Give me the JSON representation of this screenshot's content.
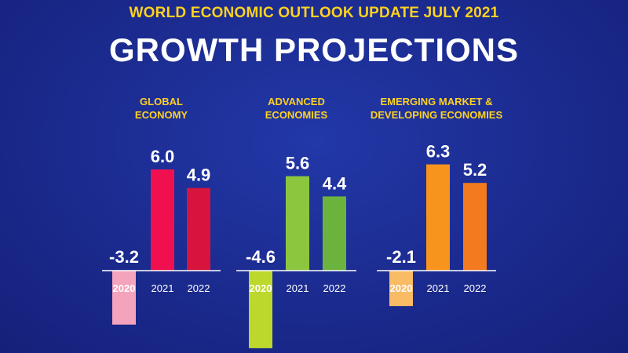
{
  "chart_data": {
    "type": "bar",
    "subtitle": "WORLD ECONOMIC OUTLOOK UPDATE JULY 2021",
    "title": "GROWTH PROJECTIONS",
    "categories": [
      "2020",
      "2021",
      "2022"
    ],
    "series": [
      {
        "name": [
          "GLOBAL",
          "ECONOMY"
        ],
        "values": [
          -3.2,
          6.0,
          4.9
        ],
        "labels": [
          "-3.2",
          "6.0",
          "4.9"
        ],
        "colors": [
          "#f4a3bd",
          "#f0104f",
          "#d7143d"
        ]
      },
      {
        "name": [
          "ADVANCED",
          "ECONOMIES"
        ],
        "values": [
          -4.6,
          5.6,
          4.4
        ],
        "labels": [
          "-4.6",
          "5.6",
          "4.4"
        ],
        "colors": [
          "#bcd82c",
          "#8cc63f",
          "#6cb33e"
        ]
      },
      {
        "name": [
          "EMERGING MARKET &",
          "DEVELOPING ECONOMIES"
        ],
        "values": [
          -2.1,
          6.3,
          5.2
        ],
        "labels": [
          "-2.1",
          "6.3",
          "5.2"
        ],
        "colors": [
          "#f9bb63",
          "#f7941d",
          "#f47a20"
        ]
      }
    ],
    "xlabel": "",
    "ylabel": "",
    "grid": false
  }
}
